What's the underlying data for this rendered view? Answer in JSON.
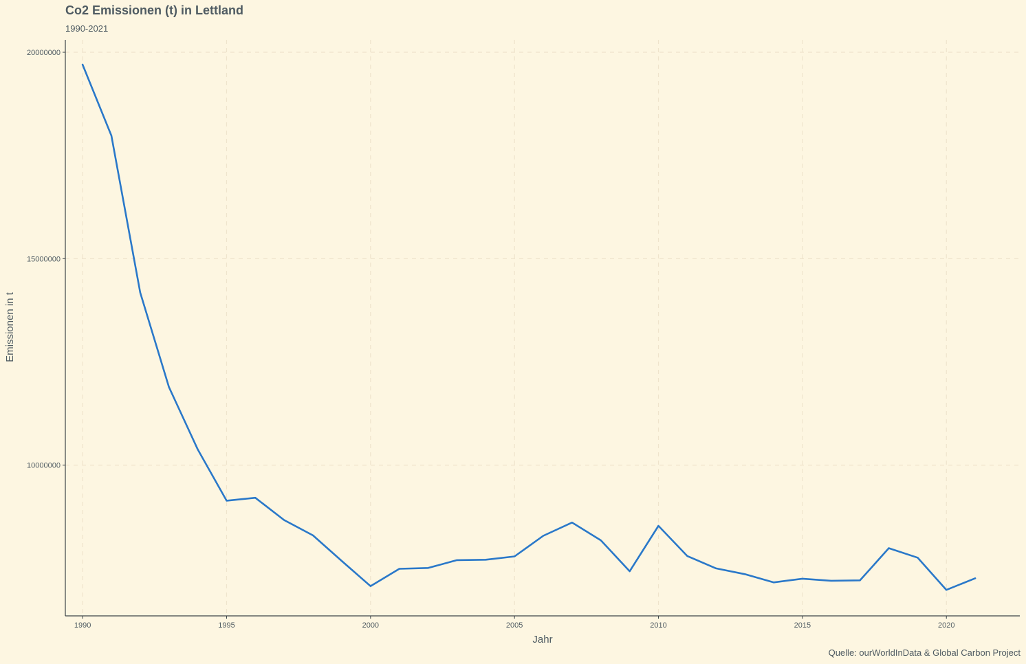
{
  "chart_data": {
    "type": "line",
    "title": "Co2 Emissionen (t) in Lettland",
    "subtitle": "1990-2021",
    "xlabel": "Jahr",
    "ylabel": "Emissionen in t",
    "caption": "Quelle: ourWorldInData & Global Carbon Project",
    "xlim": [
      1989.4,
      2022.55
    ],
    "ylim": [
      6350000,
      20300000
    ],
    "x_ticks": [
      1990,
      1995,
      2000,
      2005,
      2010,
      2015,
      2020
    ],
    "x_tick_labels": [
      "1990",
      "1995",
      "2000",
      "2005",
      "2010",
      "2015",
      "2020"
    ],
    "y_ticks": [
      10000000,
      15000000,
      20000000
    ],
    "y_tick_labels": [
      "10000000",
      "15000000",
      "20000000"
    ],
    "grid": true,
    "line_color": "#2a78c9",
    "series": [
      {
        "x": [
          1990,
          1991,
          1992,
          1993,
          1994,
          1995,
          1996,
          1997,
          1998,
          1999,
          2000,
          2001,
          2002,
          2003,
          2004,
          2005,
          2006,
          2007,
          2008,
          2009,
          2010,
          2011,
          2012,
          2013,
          2014,
          2015,
          2016,
          2017,
          2018,
          2019,
          2020,
          2021
        ],
        "values": [
          19700000,
          17980000,
          14180000,
          11890000,
          10380000,
          9140000,
          9210000,
          8670000,
          8300000,
          7680000,
          7070000,
          7490000,
          7510000,
          7700000,
          7710000,
          7790000,
          8290000,
          8610000,
          8180000,
          7430000,
          8530000,
          7800000,
          7500000,
          7360000,
          7160000,
          7250000,
          7200000,
          7210000,
          7990000,
          7760000,
          6980000,
          7260000
        ]
      }
    ]
  }
}
